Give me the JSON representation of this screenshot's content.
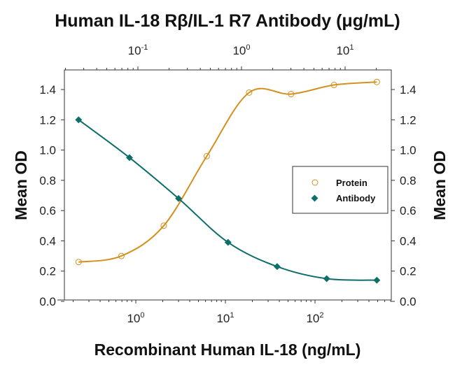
{
  "chart_data": {
    "type": "scatter",
    "title": "Human IL-18 Rβ/IL-1 R7 Antibody (μg/mL)",
    "xlabel": "Recombinant Human IL-18 (ng/mL)",
    "x2label": "Human IL-18 Rβ/IL-1 R7 Antibody (μg/mL)",
    "ylabel": "Mean OD",
    "y2label": "Mean OD",
    "xscale": "log",
    "xlim": [
      0.18,
      650
    ],
    "x2scale": "log",
    "x2lim": [
      0.033,
      22
    ],
    "ylim": [
      0.0,
      1.5
    ],
    "yticks": [
      "0.0",
      "0.2",
      "0.4",
      "0.6",
      "0.8",
      "1.0",
      "1.2",
      "1.4"
    ],
    "xticks": [
      {
        "base": "10",
        "exp": "0"
      },
      {
        "base": "10",
        "exp": "1"
      },
      {
        "base": "10",
        "exp": "2"
      }
    ],
    "x2ticks": [
      {
        "base": "10",
        "exp": "-1"
      },
      {
        "base": "10",
        "exp": "0"
      },
      {
        "base": "10",
        "exp": "1"
      }
    ],
    "grid": false,
    "legend_position": "center-right",
    "series": [
      {
        "name": "Protein",
        "marker": "open-circle",
        "color": "#d4901f",
        "axis": "bottom",
        "x": [
          0.23,
          0.69,
          2.05,
          6.2,
          18.4,
          54,
          163,
          490
        ],
        "y": [
          0.26,
          0.3,
          0.5,
          0.96,
          1.38,
          1.37,
          1.43,
          1.45
        ]
      },
      {
        "name": "Antibody",
        "marker": "filled-diamond",
        "color": "#0d6e6a",
        "axis": "bottom",
        "x": [
          0.23,
          0.85,
          3.0,
          10.7,
          37.8,
          135,
          490
        ],
        "y": [
          1.2,
          0.95,
          0.68,
          0.39,
          0.23,
          0.15,
          0.14
        ]
      }
    ]
  },
  "legend": {
    "items": [
      {
        "label": "Protein"
      },
      {
        "label": "Antibody"
      }
    ]
  }
}
